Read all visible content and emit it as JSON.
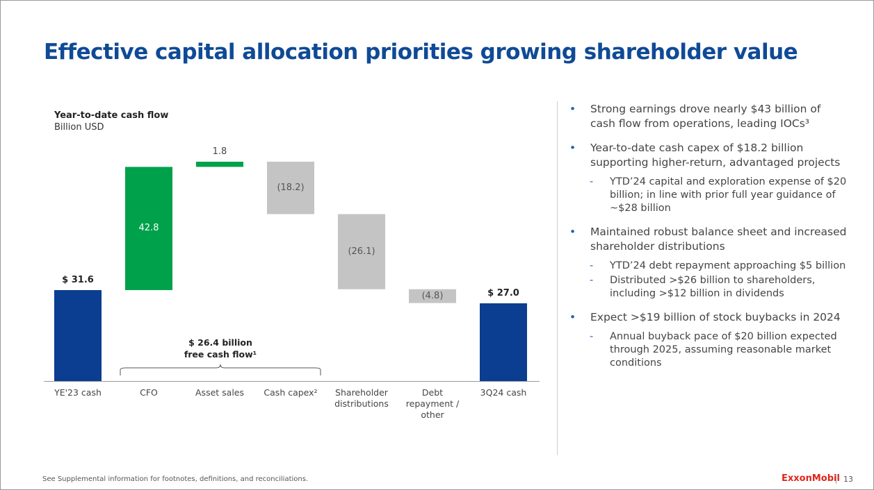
{
  "title": "Effective capital allocation priorities growing shareholder value",
  "chart_data": {
    "type": "waterfall",
    "title": "Year-to-date cash flow",
    "subtitle": "Billion USD",
    "categories": [
      "YE'23 cash",
      "CFO",
      "Asset sales",
      "Cash capex²",
      "Shareholder distributions",
      "Debt repayment / other",
      "3Q24 cash"
    ],
    "values": [
      31.6,
      42.8,
      1.8,
      -18.2,
      -26.1,
      -4.8,
      27.0
    ],
    "value_labels": [
      "$ 31.6",
      "42.8",
      "1.8",
      "(18.2)",
      "(26.1)",
      "(4.8)",
      "$ 27.0"
    ],
    "totals": [
      true,
      false,
      false,
      false,
      false,
      false,
      true
    ],
    "colors": {
      "total": "#0b3d91",
      "increase": "#00a14b",
      "decrease": "#c4c4c4"
    },
    "annotation": [
      "$ 26.4 billion",
      "free cash flow¹"
    ]
  },
  "bullets": [
    {
      "text": "Strong earnings drove nearly $43 billion of cash flow from operations, leading IOCs³",
      "subs": []
    },
    {
      "text": "Year-to-date cash capex of $18.2 billion supporting higher-return, advantaged projects",
      "subs": [
        "YTD’24 capital and exploration expense of $20 billion; in line with prior full year guidance of ~$28 billion"
      ]
    },
    {
      "text": "Maintained robust balance sheet and increased shareholder distributions",
      "subs": [
        "YTD’24 debt repayment approaching $5 billion",
        "Distributed >$26 billion to shareholders, including >$12 billion in dividends"
      ]
    },
    {
      "text": "Expect >$19 billion of stock buybacks in 2024",
      "subs": [
        "Annual buyback pace of $20 billion expected through 2025, assuming reasonable market conditions"
      ]
    }
  ],
  "footer": "See Supplemental information for footnotes, definitions, and reconciliations.",
  "logo": "ExxonMobil",
  "page": "13"
}
